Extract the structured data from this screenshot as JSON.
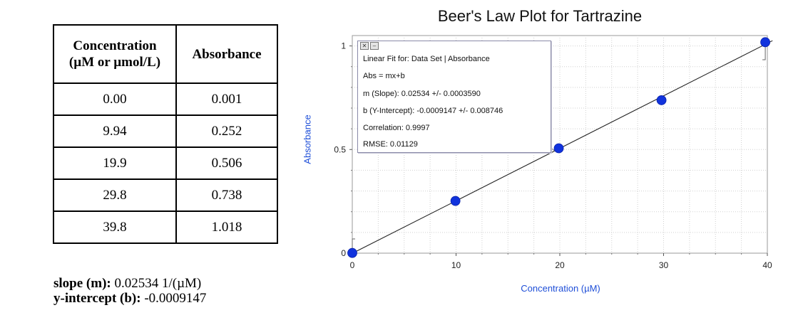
{
  "table": {
    "headers": [
      "Concentration (µM or µmol/L)",
      "Absorbance"
    ],
    "header_line1": "Concentration",
    "header_line2": "(µM or µmol/L)",
    "rows": [
      {
        "conc": "0.00",
        "abs": "0.001"
      },
      {
        "conc": "9.94",
        "abs": "0.252"
      },
      {
        "conc": "19.9",
        "abs": "0.506"
      },
      {
        "conc": "29.8",
        "abs": "0.738"
      },
      {
        "conc": "39.8",
        "abs": "1.018"
      }
    ]
  },
  "notes": {
    "slope_label": "slope (m):",
    "slope_value": "0.02534 1/(µM)",
    "intercept_label": "y-intercept (b):",
    "intercept_value": "-0.0009147"
  },
  "fit_box": {
    "title": "Linear Fit for: Data Set | Absorbance",
    "equation": "Abs = mx+b",
    "slope": "m (Slope): 0.02534 +/- 0.0003590",
    "intercept": "b (Y-Intercept): -0.0009147 +/- 0.008746",
    "correlation": "Correlation: 0.9997",
    "rmse": "RMSE: 0.01129"
  },
  "chart_data": {
    "type": "scatter",
    "title": "Beer's Law Plot for Tartrazine",
    "xlabel": "Concentration (µM)",
    "ylabel": "Absorbance",
    "xlim": [
      0,
      40
    ],
    "ylim": [
      0,
      1.05
    ],
    "x_ticks": [
      "0",
      "10",
      "20",
      "30",
      "40"
    ],
    "y_ticks": [
      "0",
      "0.5",
      "1"
    ],
    "grid": true,
    "series": [
      {
        "x": [
          0.0,
          9.94,
          19.9,
          29.8,
          39.8
        ],
        "y": [
          0.001,
          0.252,
          0.506,
          0.738,
          1.018
        ]
      }
    ],
    "fit_line": {
      "slope": 0.02534,
      "intercept": -0.0009147
    },
    "colors": {
      "points": "#1133dd",
      "line": "#222222",
      "grid": "#d0d0d0",
      "axis_label": "#1f4fd8"
    }
  }
}
